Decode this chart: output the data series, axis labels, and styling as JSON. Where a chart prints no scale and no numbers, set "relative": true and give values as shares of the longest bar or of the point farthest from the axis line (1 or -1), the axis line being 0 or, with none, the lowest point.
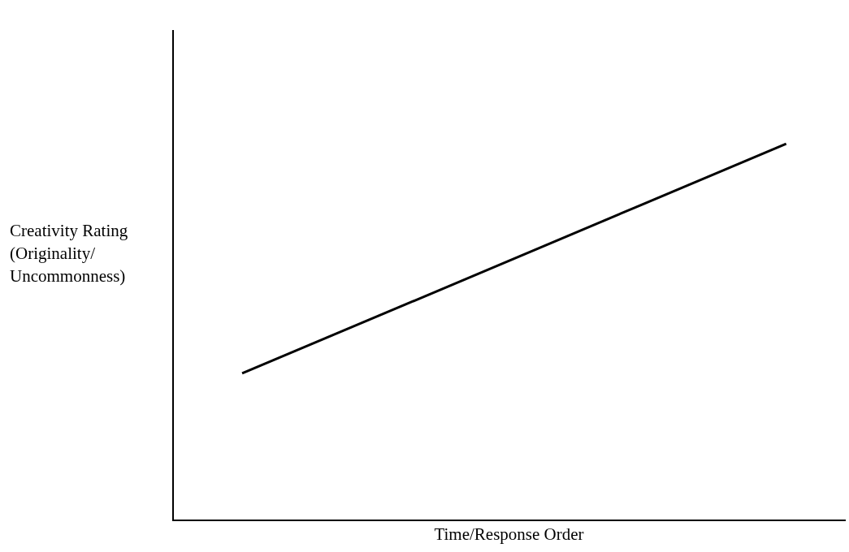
{
  "chart_data": {
    "type": "line",
    "xlabel": "Time/Response Order",
    "ylabel": "Creativity Rating (Originality/ Uncommonness)",
    "relative": true,
    "categories": [
      null,
      null
    ],
    "values": [
      0.39,
      1
    ],
    "color": "#000000",
    "marker": "none"
  }
}
